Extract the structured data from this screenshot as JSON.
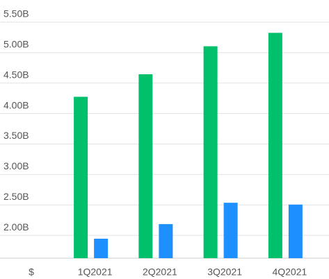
{
  "chart_data": {
    "type": "bar",
    "ylabel": "$",
    "categories": [
      "1Q2021",
      "2Q2021",
      "3Q2021",
      "4Q2021"
    ],
    "series": [
      {
        "color": "#00c06b",
        "values": [
          4.15,
          4.52,
          4.98,
          5.2
        ]
      },
      {
        "color": "#1e8fff",
        "values": [
          1.82,
          2.06,
          2.41,
          2.38
        ]
      }
    ],
    "ylim": [
      1.5,
      5.5
    ],
    "yticks": [
      {
        "value": 2.0,
        "label": "2.00B"
      },
      {
        "value": 2.5,
        "label": "2.50B"
      },
      {
        "value": 3.0,
        "label": "3.00B"
      },
      {
        "value": 3.5,
        "label": "3.50B"
      },
      {
        "value": 4.0,
        "label": "4.00B"
      },
      {
        "value": 4.5,
        "label": "4.50B"
      },
      {
        "value": 5.0,
        "label": "5.00B"
      },
      {
        "value": 5.5,
        "label": "5.50B"
      }
    ],
    "grid": true
  }
}
